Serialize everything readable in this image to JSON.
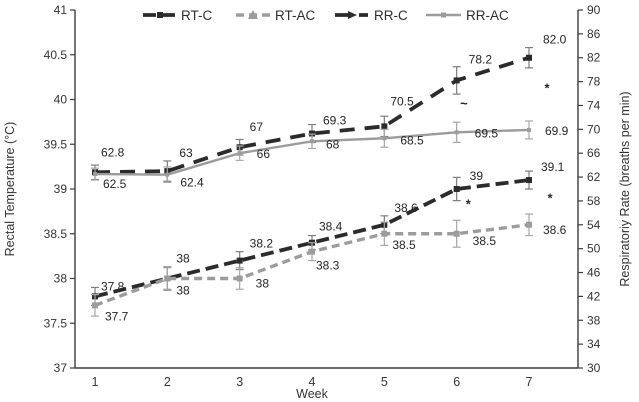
{
  "figure": {
    "background": "#ffffff"
  },
  "chart_data": {
    "type": "line",
    "title": "",
    "x": [
      1,
      2,
      3,
      4,
      5,
      6,
      7
    ],
    "xlabel": "Week",
    "axes": {
      "left": {
        "label": "Rectal Temperature  (°C)",
        "min": 37,
        "max": 41,
        "step": 0.5
      },
      "right": {
        "label": "Respiratoriy Rate (breaths per min)",
        "min": 30,
        "max": 90,
        "step": 4
      }
    },
    "grid": "off",
    "legend": {
      "position": "top",
      "items": [
        "RT-C",
        "RT-AC",
        "RR-C",
        "RR-AC"
      ]
    },
    "colors": {
      "black": "#2b2b2b",
      "gray": "#9c9c9c",
      "axis": "#3c3c3c"
    },
    "series": [
      {
        "name": "RT-C",
        "axis": "left",
        "color": "#2b2b2b",
        "err_color": "#7d7d7d",
        "dash": "13 6",
        "width": 3.8,
        "marker": "square",
        "marker_size": 6,
        "values": [
          37.8,
          38,
          38.2,
          38.4,
          38.6,
          39,
          39.1
        ],
        "labels": [
          "37.8",
          "38",
          "38.2",
          "38.4",
          "38.6",
          "39",
          "39.1"
        ],
        "err": [
          0.1,
          0.13,
          0.1,
          0.08,
          0.1,
          0.13,
          0.1
        ],
        "label_offsets": [
          [
            6,
            -6
          ],
          [
            9,
            -16
          ],
          [
            10,
            -13
          ],
          [
            7,
            -12
          ],
          [
            10,
            -13
          ],
          [
            13,
            -9
          ],
          [
            12,
            -9
          ]
        ]
      },
      {
        "name": "RT-AC",
        "axis": "left",
        "color": "#9c9c9c",
        "err_color": "#a6a6a6",
        "dash": "8 5",
        "width": 3.4,
        "marker": "square",
        "marker_size": 6,
        "values": [
          37.7,
          38,
          38,
          38.3,
          38.5,
          38.5,
          38.6
        ],
        "labels": [
          "37.7",
          "38",
          "38",
          "38.3",
          "38.5",
          "38.5",
          "38.6"
        ],
        "err": [
          0.12,
          0.12,
          0.12,
          0.1,
          0.13,
          0.15,
          0.12
        ],
        "label_offsets": [
          [
            10,
            15
          ],
          [
            9,
            16
          ],
          [
            16,
            9
          ],
          [
            4,
            18
          ],
          [
            8,
            15
          ],
          [
            16,
            11
          ],
          [
            14,
            9
          ]
        ]
      },
      {
        "name": "RR-C",
        "axis": "right",
        "color": "#2b2b2b",
        "err_color": "#7d7d7d",
        "dash": "15 10",
        "width": 3.8,
        "marker": "square",
        "marker_size": 6,
        "values": [
          62.8,
          63,
          67,
          69.3,
          70.5,
          78.2,
          82.0
        ],
        "labels": [
          "62.8",
          "63",
          "67",
          "69.3",
          "70.5",
          "78.2",
          "82.0"
        ],
        "err": [
          1.2,
          1.7,
          1.3,
          1.5,
          1.7,
          2.3,
          1.7
        ],
        "label_offsets": [
          [
            6,
            -16
          ],
          [
            12,
            -14
          ],
          [
            10,
            -16
          ],
          [
            11,
            -9
          ],
          [
            6,
            -21
          ],
          [
            12,
            -17
          ],
          [
            14,
            -14
          ]
        ]
      },
      {
        "name": "RR-AC",
        "axis": "right",
        "color": "#9c9c9c",
        "err_color": "#a6a6a6",
        "dash": "",
        "width": 2.4,
        "marker": "square",
        "marker_size": 4,
        "values": [
          62.5,
          62.4,
          66,
          68,
          68.5,
          69.5,
          69.9
        ],
        "labels": [
          "62.5",
          "62.4",
          "66",
          "68",
          "68.5",
          "69.5",
          "69.9"
        ],
        "err": [
          1.0,
          1.3,
          1.2,
          1.2,
          1.5,
          1.7,
          1.5
        ],
        "label_offsets": [
          [
            8,
            14
          ],
          [
            13,
            12
          ],
          [
            17,
            5
          ],
          [
            14,
            7
          ],
          [
            16,
            6
          ],
          [
            18,
            5
          ],
          [
            16,
            5
          ]
        ]
      }
    ],
    "annotations": [
      {
        "text": "~",
        "week": 6.1,
        "axis": "right",
        "value": 73.6
      },
      {
        "text": "*",
        "week": 7.25,
        "axis": "right",
        "value": 76.2
      },
      {
        "text": "*",
        "week": 6.16,
        "axis": "left",
        "value": 38.78
      },
      {
        "text": "*",
        "week": 7.29,
        "axis": "left",
        "value": 38.85
      }
    ]
  }
}
